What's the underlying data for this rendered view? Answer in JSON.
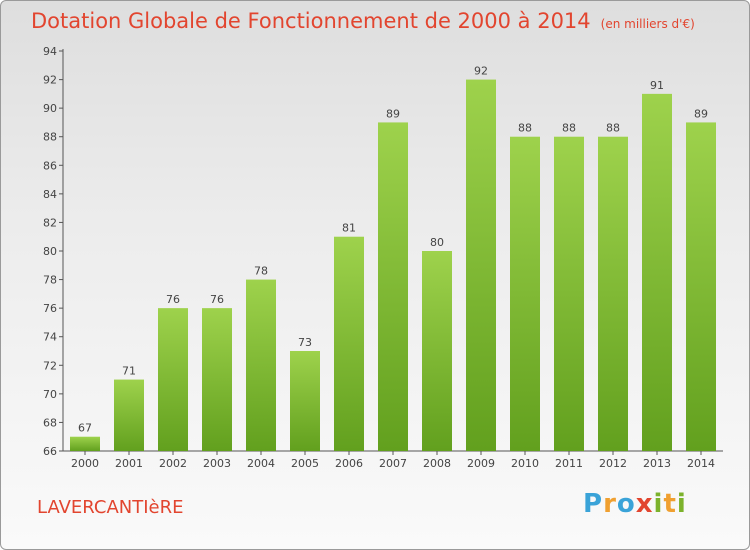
{
  "title": "Dotation Globale de Fonctionnement de 2000 à 2014",
  "unit": "(en milliers d'€)",
  "commune": "LAVERCANTIèRE",
  "logo_text": "Proxiti",
  "colors": {
    "bar_top": "#9ed24c",
    "bar_bottom": "#62a01e",
    "title": "#e2452f"
  },
  "chart_data": {
    "type": "bar",
    "title": "Dotation Globale de Fonctionnement de 2000 à 2014",
    "xlabel": "",
    "ylabel": "",
    "ylim": [
      66,
      94
    ],
    "yticks": [
      66,
      68,
      70,
      72,
      74,
      76,
      78,
      80,
      82,
      84,
      86,
      88,
      90,
      92,
      94
    ],
    "grid": false,
    "categories": [
      "2000",
      "2001",
      "2002",
      "2003",
      "2004",
      "2005",
      "2006",
      "2007",
      "2008",
      "2009",
      "2010",
      "2011",
      "2012",
      "2013",
      "2014"
    ],
    "values": [
      67,
      71,
      76,
      76,
      78,
      73,
      81,
      89,
      80,
      92,
      88,
      88,
      88,
      91,
      89
    ]
  }
}
